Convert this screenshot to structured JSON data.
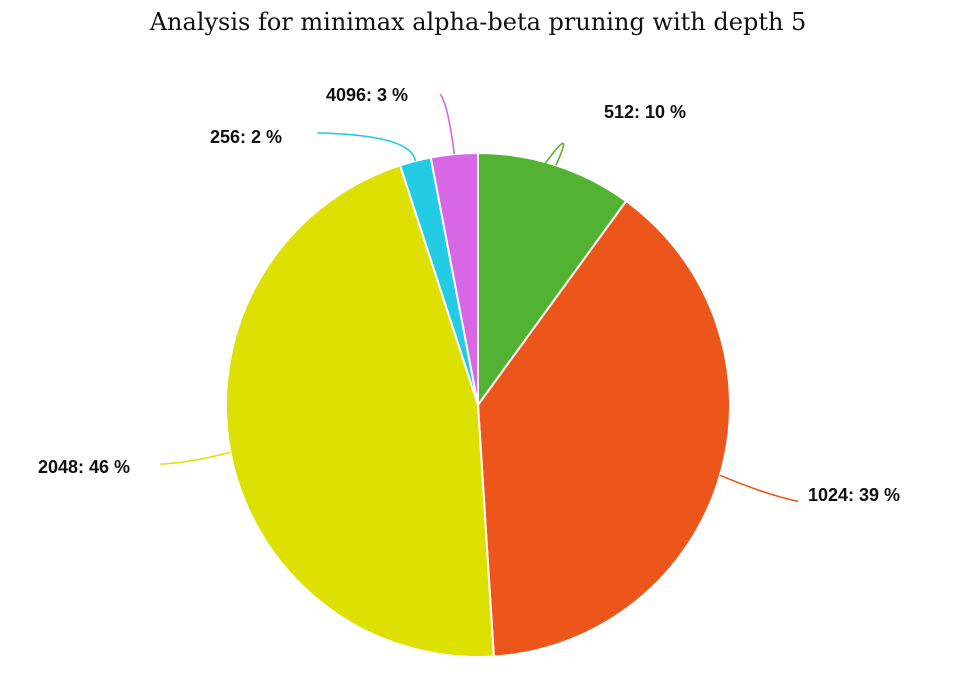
{
  "chart_data": {
    "type": "pie",
    "title": "Analysis for minimax alpha-beta pruning with depth 5",
    "slices": [
      {
        "label": "512",
        "percent_label": "10 %",
        "value": 10,
        "color": "#52b333"
      },
      {
        "label": "1024",
        "percent_label": "39 %",
        "value": 39,
        "color": "#ec561b"
      },
      {
        "label": "2048",
        "percent_label": "46 %",
        "value": 46,
        "color": "#dde000"
      },
      {
        "label": "256",
        "percent_label": "2 %",
        "value": 2,
        "color": "#24cbe5"
      },
      {
        "label": "4096",
        "percent_label": "3 %",
        "value": 3,
        "color": "#d867e6"
      }
    ],
    "start_angle": "top",
    "direction": "clockwise",
    "legend": "none"
  }
}
